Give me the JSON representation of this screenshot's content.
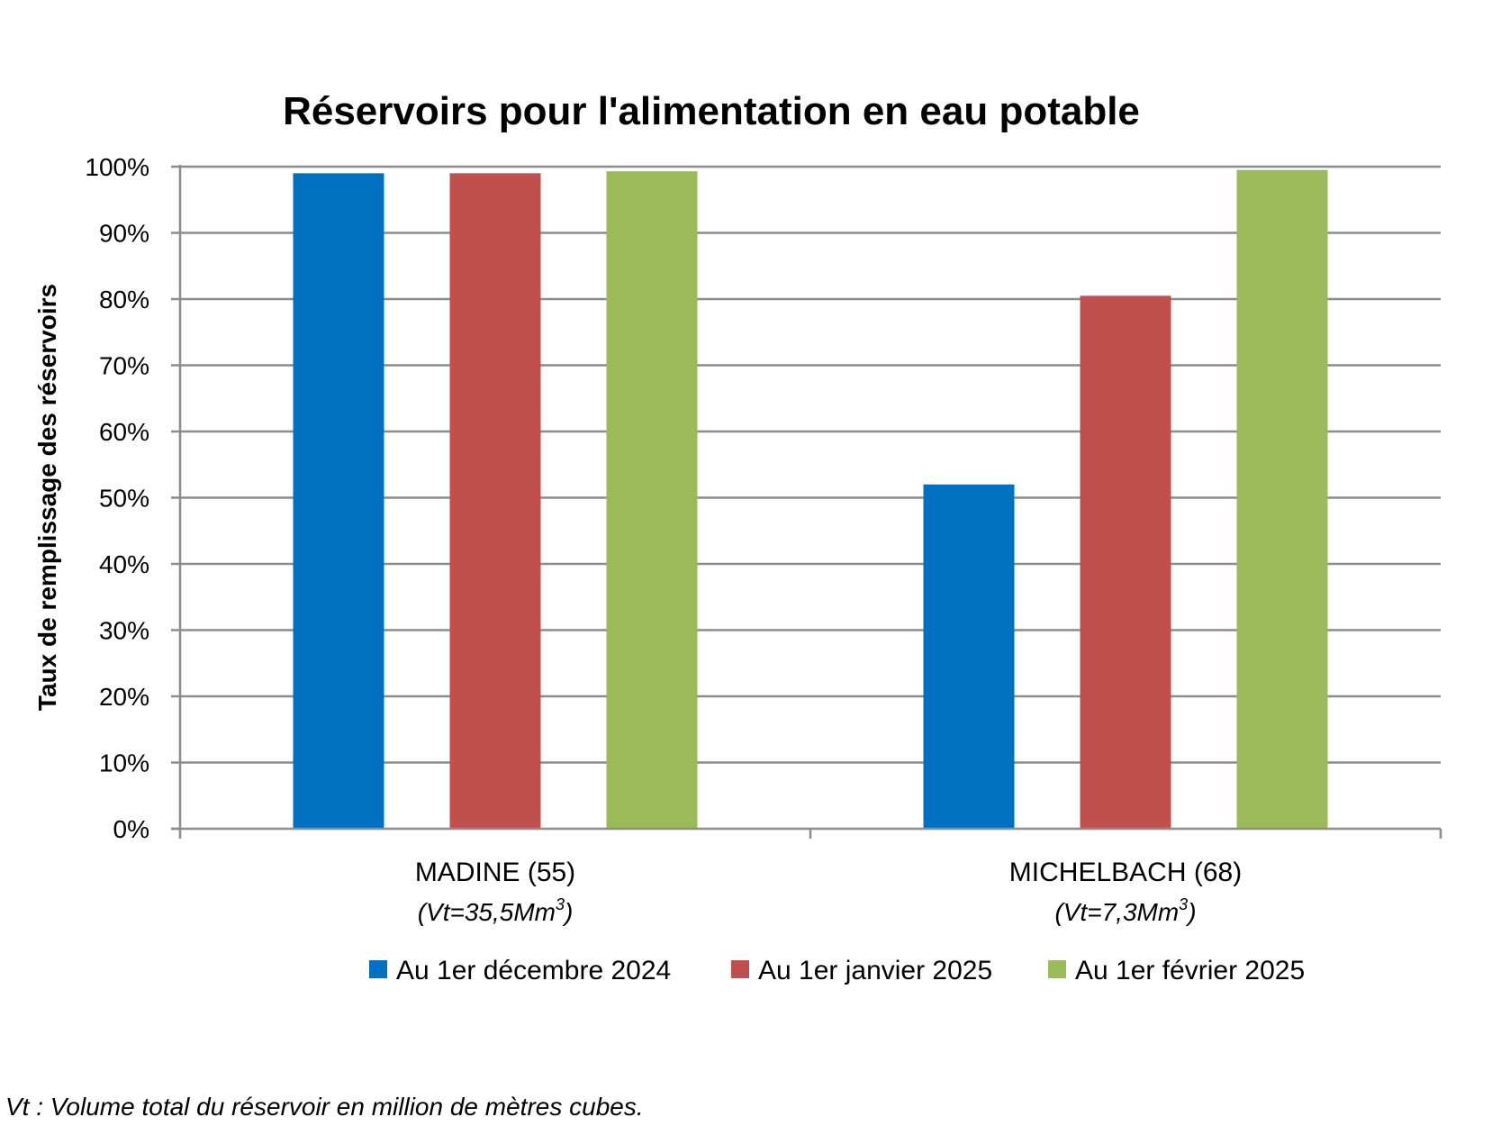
{
  "footnote": "Vt : Volume total du réservoir en million de mètres cubes.",
  "chart_data": {
    "type": "bar",
    "title": "Réservoirs pour l'alimentation en eau potable",
    "ylabel": "Taux de remplissage des réservoirs",
    "xlabel": "",
    "ylim": [
      0,
      100
    ],
    "y_ticks": [
      "0%",
      "10%",
      "20%",
      "30%",
      "40%",
      "50%",
      "60%",
      "70%",
      "80%",
      "90%",
      "100%"
    ],
    "categories": [
      "MADINE (55)",
      "MICHELBACH (68)"
    ],
    "category_subtitles": [
      {
        "prefix": "(Vt=35,5Mm",
        "sup": "3",
        "suffix": ")"
      },
      {
        "prefix": "(Vt=7,3Mm",
        "sup": "3",
        "suffix": ")"
      }
    ],
    "series": [
      {
        "name": "Au 1er décembre 2024",
        "color": "#0070C0",
        "values": [
          99,
          52
        ]
      },
      {
        "name": "Au 1er janvier 2025",
        "color": "#C0504D",
        "values": [
          99,
          80.5
        ]
      },
      {
        "name": "Au 1er février 2025",
        "color": "#9BBB59",
        "values": [
          99.3,
          99.5
        ]
      }
    ],
    "grid": true,
    "legend": "bottom"
  }
}
